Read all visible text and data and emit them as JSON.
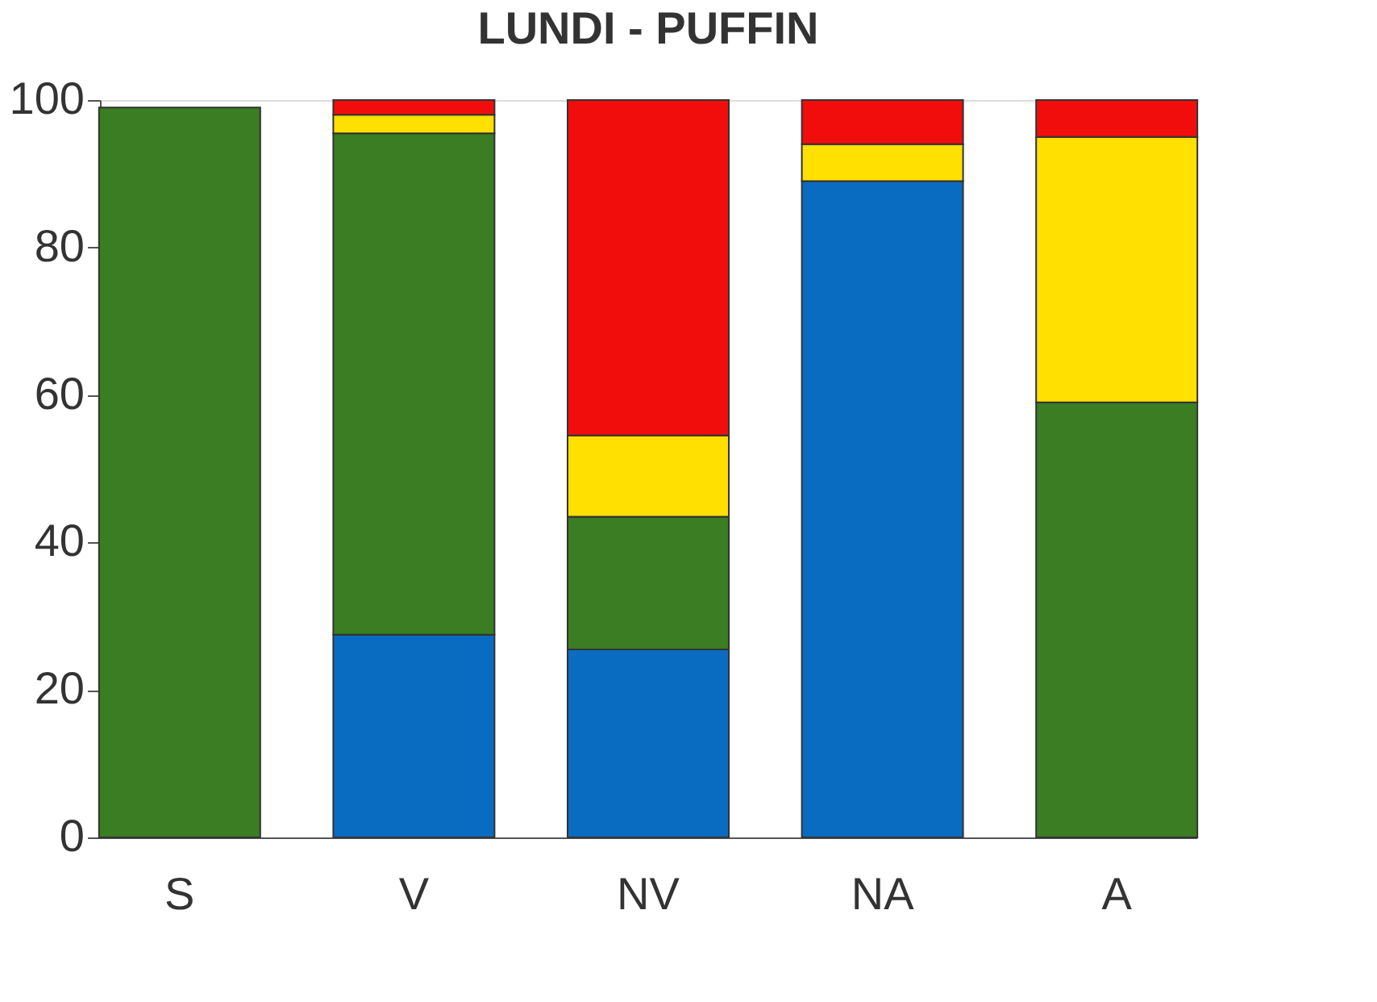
{
  "chart_data": {
    "type": "bar",
    "title": "LUNDI - PUFFIN",
    "stacked": true,
    "categories": [
      "S",
      "V",
      "NV",
      "NA",
      "A"
    ],
    "series": [
      {
        "color": "#0a6cc0",
        "values": [
          null,
          27.5,
          25.5,
          89,
          null
        ]
      },
      {
        "color": "#3a7d22",
        "values": [
          99,
          68,
          18,
          null,
          59
        ]
      },
      {
        "color": "#ffe000",
        "values": [
          null,
          2.5,
          11,
          5,
          36
        ]
      },
      {
        "color": "#f20d0d",
        "values": [
          null,
          2,
          45.5,
          6,
          5
        ]
      }
    ],
    "ylim": [
      0,
      100
    ],
    "yticks": [
      0,
      20,
      40,
      60,
      80,
      100
    ],
    "grid": false
  }
}
